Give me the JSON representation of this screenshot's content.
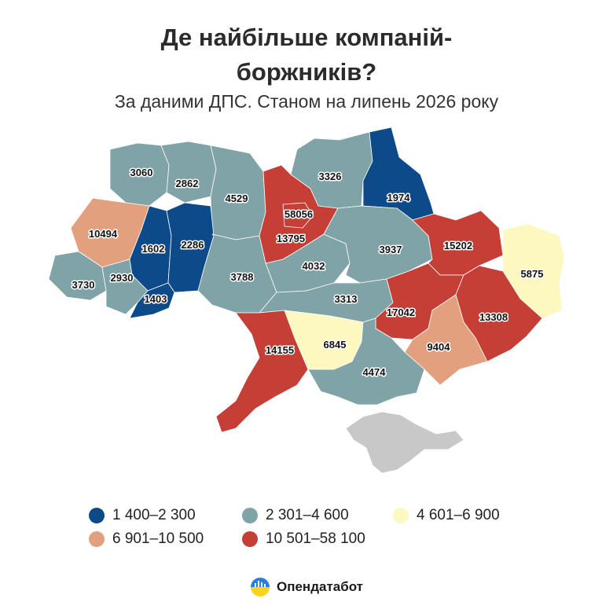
{
  "title": {
    "line1": "Де найбільше компаній-",
    "line2": "боржників?"
  },
  "subtitle": "За даними ДПС. Станом на липень 2026 року",
  "legend": {
    "items": [
      {
        "label": "1 400–2 300",
        "color": "#0d4a8a"
      },
      {
        "label": "2 301–4 600",
        "color": "#7fa3a6"
      },
      {
        "label": "4 601–6 900",
        "color": "#fdf7c0"
      },
      {
        "label": "6 901–10 500",
        "color": "#e3a07f"
      },
      {
        "label": "10 501–58 100",
        "color": "#c63f37"
      }
    ]
  },
  "colors": {
    "dark_blue": "#0d4a8a",
    "gray_teal": "#7fa3a6",
    "pale_yellow": "#fdf7c0",
    "salmon": "#e3a07f",
    "red": "#c63f37",
    "crimea": "#c8c8c8"
  },
  "map": {
    "regions": [
      {
        "value": "3060",
        "color": "#7fa3a6"
      },
      {
        "value": "2862",
        "color": "#7fa3a6"
      },
      {
        "value": "4529",
        "color": "#7fa3a6"
      },
      {
        "value": "3326",
        "color": "#7fa3a6"
      },
      {
        "value": "1974",
        "color": "#0d4a8a"
      },
      {
        "value": "58056",
        "color": "#c63f37"
      },
      {
        "value": "13795",
        "color": "#c63f37"
      },
      {
        "value": "10494",
        "color": "#e3a07f"
      },
      {
        "value": "1602",
        "color": "#0d4a8a"
      },
      {
        "value": "2286",
        "color": "#0d4a8a"
      },
      {
        "value": "3937",
        "color": "#7fa3a6"
      },
      {
        "value": "15202",
        "color": "#c63f37"
      },
      {
        "value": "5875",
        "color": "#fdf7c0"
      },
      {
        "value": "3730",
        "color": "#7fa3a6"
      },
      {
        "value": "2930",
        "color": "#7fa3a6"
      },
      {
        "value": "3788",
        "color": "#7fa3a6"
      },
      {
        "value": "4032",
        "color": "#7fa3a6"
      },
      {
        "value": "1403",
        "color": "#0d4a8a"
      },
      {
        "value": "3313",
        "color": "#7fa3a6"
      },
      {
        "value": "17042",
        "color": "#c63f37"
      },
      {
        "value": "13308",
        "color": "#c63f37"
      },
      {
        "value": "14155",
        "color": "#c63f37"
      },
      {
        "value": "6845",
        "color": "#fdf7c0"
      },
      {
        "value": "9404",
        "color": "#e3a07f"
      },
      {
        "value": "4474",
        "color": "#7fa3a6"
      }
    ]
  },
  "brand": {
    "name": "Опендатабот",
    "icon": "opendatabot-logo-icon"
  }
}
